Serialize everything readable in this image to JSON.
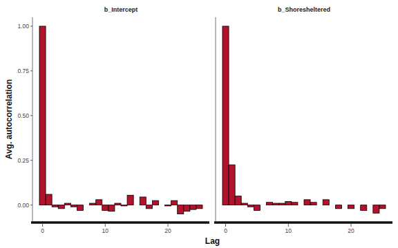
{
  "chart_data": [
    {
      "type": "bar",
      "title": "b_Intercept",
      "color": "#b0132b",
      "x": [
        0,
        1,
        2,
        3,
        4,
        5,
        6,
        7,
        8,
        9,
        10,
        11,
        12,
        13,
        14,
        15,
        16,
        17,
        18,
        19,
        20,
        21,
        22,
        23,
        24,
        25
      ],
      "values": [
        1.0,
        0.06,
        -0.01,
        -0.02,
        0.01,
        -0.01,
        -0.03,
        0.0,
        0.01,
        0.03,
        -0.03,
        -0.035,
        0.01,
        -0.005,
        0.055,
        0.0,
        0.045,
        -0.02,
        0.025,
        0.0,
        -0.005,
        0.025,
        -0.05,
        -0.035,
        -0.025,
        -0.02
      ],
      "xlim": [
        -1.6,
        26.6
      ],
      "ylim": [
        -0.09,
        1.05
      ],
      "xticks": [
        0,
        10,
        20
      ],
      "yticks": [
        {
          "value": 0,
          "label": "0.00"
        },
        {
          "value": 0.25,
          "label": "0.25"
        },
        {
          "value": 0.5,
          "label": "0.50"
        },
        {
          "value": 0.75,
          "label": "0.75"
        },
        {
          "value": 1,
          "label": "1.00"
        }
      ],
      "x_label": "Lag",
      "y_label": "Avg.  autocorrelation"
    },
    {
      "type": "bar",
      "title": "b_Shoresheltered",
      "color": "#b0132b",
      "tick_labels": "x",
      "x": [
        0,
        1,
        2,
        3,
        4,
        5,
        6,
        7,
        8,
        9,
        10,
        11,
        12,
        13,
        14,
        15,
        16,
        17,
        18,
        19,
        20,
        21,
        22,
        23,
        24,
        25
      ],
      "values": [
        1.0,
        0.225,
        0.05,
        0.01,
        -0.01,
        -0.03,
        0.0,
        0.015,
        0.01,
        0.01,
        0.02,
        0.015,
        0.0,
        0.03,
        0.015,
        0.0,
        0.03,
        0.0,
        -0.02,
        0.0,
        -0.02,
        0.0,
        -0.03,
        0.0,
        -0.045,
        -0.02
      ],
      "xlim": [
        -1.6,
        26.6
      ],
      "ylim": [
        -0.09,
        1.05
      ],
      "xticks": [
        0,
        10,
        20
      ]
    }
  ]
}
